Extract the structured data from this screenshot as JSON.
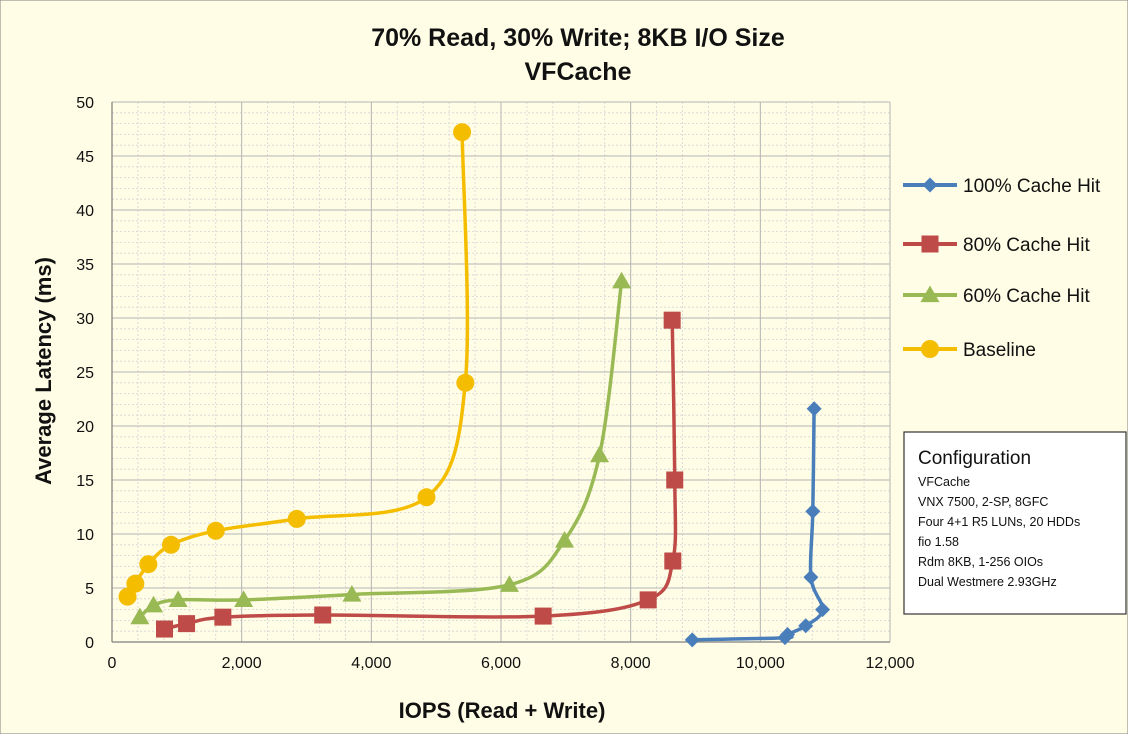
{
  "chart_data": {
    "type": "scatter",
    "title": [
      "70% Read, 30% Write; 8KB I/O Size",
      "VFCache"
    ],
    "xlabel": "IOPS (Read + Write)",
    "ylabel": "Average Latency (ms)",
    "xlim": [
      0,
      12000
    ],
    "ylim": [
      0,
      50
    ],
    "x_major_step": 2000,
    "y_major_step": 5,
    "x_tick_labels": [
      "0",
      "2,000",
      "4,000",
      "6,000",
      "8,000",
      "10,000",
      "12,000"
    ],
    "y_tick_labels": [
      "0",
      "5",
      "10",
      "15",
      "20",
      "25",
      "30",
      "35",
      "40",
      "45",
      "50"
    ],
    "grid": true,
    "lines": "smooth",
    "legend_position": "right",
    "series": [
      {
        "name": "100% Cache Hit",
        "color": "#4a7ebb",
        "marker": "diamond",
        "x": [
          8950,
          10380,
          10420,
          10700,
          10960,
          10780,
          10810,
          10830
        ],
        "y": [
          0.2,
          0.4,
          0.7,
          1.5,
          3.0,
          6.0,
          12.1,
          21.6
        ]
      },
      {
        "name": "80% Cache Hit",
        "color": "#be4b48",
        "marker": "square",
        "x": [
          810,
          1150,
          1710,
          3250,
          6650,
          8270,
          8650,
          8680,
          8640
        ],
        "y": [
          1.2,
          1.7,
          2.3,
          2.5,
          2.4,
          3.9,
          7.5,
          15.0,
          29.8
        ]
      },
      {
        "name": "60% Cache Hit",
        "color": "#98b954",
        "marker": "triangle",
        "x": [
          430,
          640,
          1020,
          2030,
          3700,
          6130,
          6980,
          7520,
          7860
        ],
        "y": [
          2.3,
          3.4,
          3.9,
          3.9,
          4.4,
          5.3,
          9.4,
          17.3,
          33.4
        ]
      },
      {
        "name": "Baseline",
        "color": "#f5bd00",
        "marker": "circle",
        "x": [
          240,
          360,
          560,
          910,
          1600,
          2850,
          4850,
          5450,
          5400
        ],
        "y": [
          4.2,
          5.4,
          7.2,
          9.0,
          10.3,
          11.4,
          13.4,
          24.0,
          47.2
        ]
      }
    ],
    "annotation": {
      "heading": "Configuration",
      "lines": [
        "VFCache",
        "VNX 7500, 2-SP, 8GFC",
        "Four 4+1 R5 LUNs, 20 HDDs",
        "fio 1.58",
        "Rdm 8KB, 1-256 OIOs",
        "Dual Westmere 2.93GHz"
      ]
    }
  },
  "colors": {
    "background": "#fffde6",
    "grid": "#b5b5b5",
    "grid_minor": "#d4d4d4",
    "border": "#7f7f7f"
  }
}
